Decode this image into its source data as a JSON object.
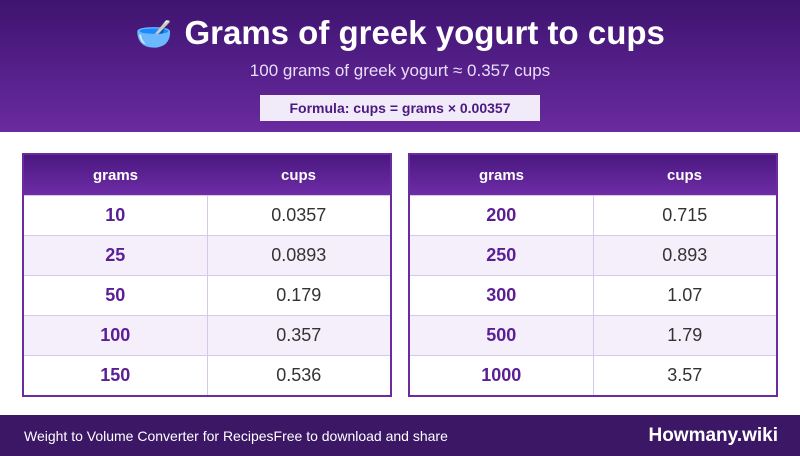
{
  "header": {
    "icon": "🥣",
    "title": "Grams of greek yogurt to cups",
    "subtitle": "100 grams of greek yogurt ≈ 0.357 cups",
    "formula": "Formula: cups = grams × 0.00357"
  },
  "tables": [
    {
      "columns": [
        "grams",
        "cups"
      ],
      "rows": [
        [
          "10",
          "0.0357"
        ],
        [
          "25",
          "0.0893"
        ],
        [
          "50",
          "0.179"
        ],
        [
          "100",
          "0.357"
        ],
        [
          "150",
          "0.536"
        ]
      ]
    },
    {
      "columns": [
        "grams",
        "cups"
      ],
      "rows": [
        [
          "200",
          "0.715"
        ],
        [
          "250",
          "0.893"
        ],
        [
          "300",
          "1.07"
        ],
        [
          "500",
          "1.79"
        ],
        [
          "1000",
          "3.57"
        ]
      ]
    }
  ],
  "footer": {
    "left": "Weight to Volume Converter for Recipes",
    "tagline": "Free to download and share",
    "brand": "Howmany.wiki"
  }
}
